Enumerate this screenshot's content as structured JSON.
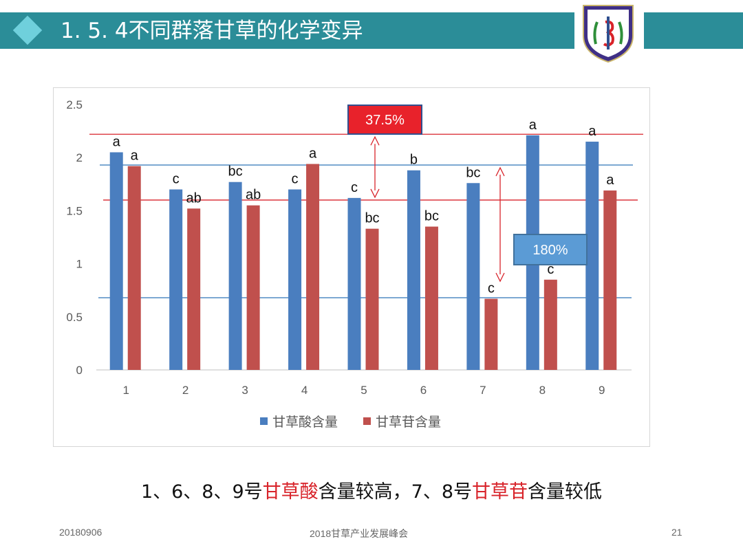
{
  "header": {
    "title": "1. 5. 4不同群落甘草的化学变异"
  },
  "conclusion": {
    "parts": [
      {
        "text": "1、6、8、9号",
        "highlight": false
      },
      {
        "text": "甘草酸",
        "highlight": true
      },
      {
        "text": "含量较高，7、8号",
        "highlight": false
      },
      {
        "text": "甘草苷",
        "highlight": true
      },
      {
        "text": "含量较低",
        "highlight": false
      }
    ]
  },
  "footer": {
    "date": "20180906",
    "event": "2018甘草产业发展峰会",
    "page": "21"
  },
  "chart_data": {
    "type": "bar",
    "categories": [
      "1",
      "2",
      "3",
      "4",
      "5",
      "6",
      "7",
      "8",
      "9"
    ],
    "ylim": [
      0,
      2.5
    ],
    "yticks": [
      0,
      0.5,
      1,
      1.5,
      2,
      2.5
    ],
    "ytick_labels": [
      "0",
      "0.5",
      "1",
      "1.5",
      "2",
      "2.5"
    ],
    "legend_position": "bottom",
    "grid": false,
    "series": [
      {
        "name": "甘草酸含量",
        "color": "#4a7ebf",
        "values": [
          2.05,
          1.7,
          1.77,
          1.7,
          1.62,
          1.88,
          1.76,
          2.21,
          2.15
        ],
        "labels": [
          "a",
          "c",
          "bc",
          "c",
          "c",
          "b",
          "bc",
          "a",
          "a"
        ]
      },
      {
        "name": "甘草苷含量",
        "color": "#c0504d",
        "values": [
          1.92,
          1.52,
          1.55,
          1.94,
          1.33,
          1.35,
          0.67,
          0.85,
          1.69
        ],
        "labels": [
          "a",
          "ab",
          "ab",
          "a",
          "bc",
          "bc",
          "c",
          "c",
          "a"
        ]
      }
    ],
    "annotations": {
      "ref_lines": [
        {
          "y": 2.22,
          "color": "#d8232a"
        },
        {
          "y": 1.93,
          "color": "#2e75b6"
        },
        {
          "y": 1.6,
          "color": "#d8232a"
        },
        {
          "y": 0.68,
          "color": "#2e75b6"
        }
      ],
      "callouts": [
        {
          "text": "37.5%",
          "fill": "#e8222b",
          "border": "#2f4f8f",
          "text_color": "#ffffff"
        },
        {
          "text": "180%",
          "fill": "#5b9bd5",
          "border": "#41719c",
          "text_color": "#ffffff"
        }
      ]
    }
  }
}
